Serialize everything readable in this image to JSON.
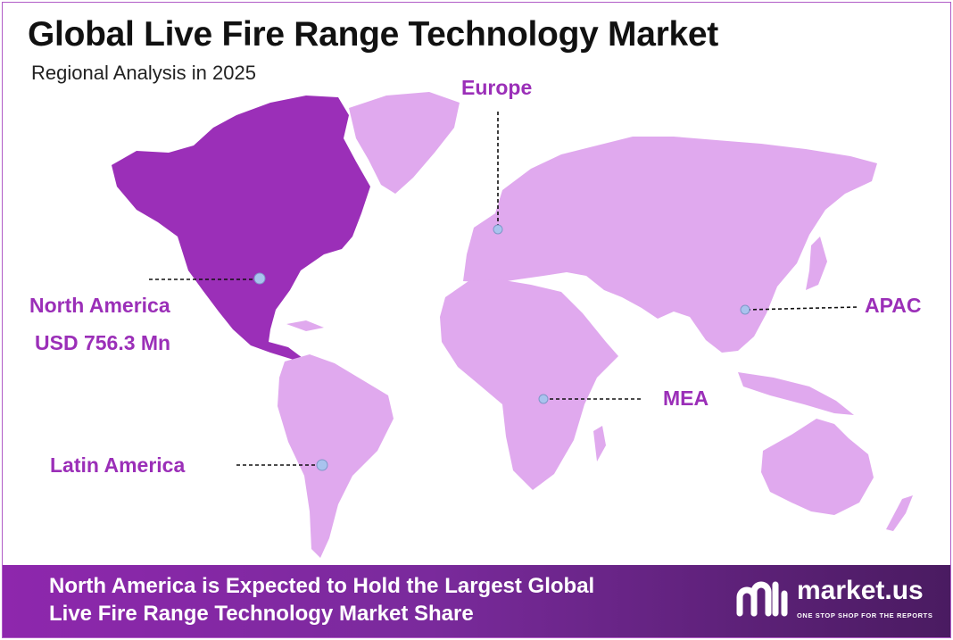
{
  "header": {
    "title": "Global Live Fire Range Technology Market",
    "subtitle": "Regional Analysis in 2025"
  },
  "colors": {
    "highlight_region": "#9b2fb8",
    "other_regions": "#e0a9ee",
    "marker_fill": "#a9c3ee",
    "label": "#9b2fb8"
  },
  "regions": [
    {
      "name": "North America",
      "value": "USD 756.3 Mn",
      "highlighted": true
    },
    {
      "name": "Europe"
    },
    {
      "name": "APAC"
    },
    {
      "name": "MEA"
    },
    {
      "name": "Latin America"
    }
  ],
  "footer": {
    "line1": "North America is Expected to Hold the Largest Global",
    "line2": "Live Fire Range Technology Market Share"
  },
  "brand": {
    "logo_icon": "market-us-logo-icon",
    "name": "market.us",
    "tagline": "ONE STOP SHOP FOR THE REPORTS"
  }
}
